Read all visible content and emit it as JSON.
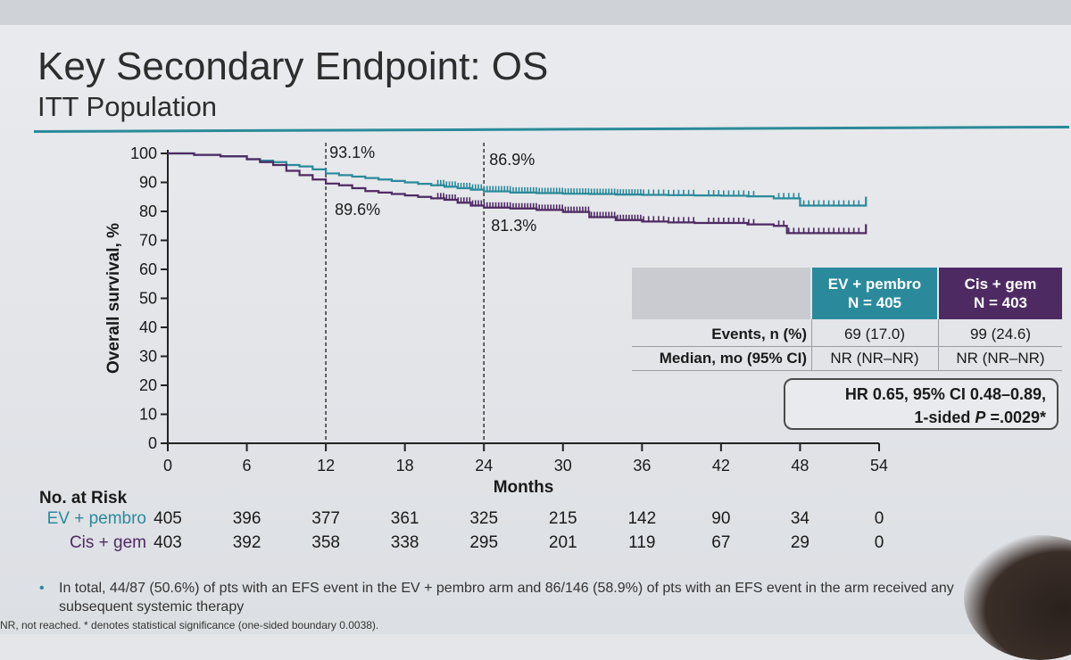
{
  "header": {
    "title": "Key Secondary Endpoint: OS",
    "subtitle": "ITT Population"
  },
  "colors": {
    "ev_pembro": "#2a8a9b",
    "cis_gem": "#4e2a63",
    "accent_rule": "#2b8a99"
  },
  "chart_data": {
    "type": "line",
    "subtype": "kaplan-meier",
    "xlabel": "Months",
    "ylabel": "Overall survival, %",
    "xlim": [
      0,
      54
    ],
    "ylim": [
      0,
      100
    ],
    "x_ticks": [
      0,
      6,
      12,
      18,
      24,
      30,
      36,
      42,
      48,
      54
    ],
    "y_ticks": [
      0,
      10,
      20,
      30,
      40,
      50,
      60,
      70,
      80,
      90,
      100
    ],
    "series": [
      {
        "name": "EV + pembro",
        "color": "#2a8a9b",
        "x": [
          0,
          2,
          4,
          6,
          7,
          8,
          9,
          10,
          11,
          12,
          13,
          14,
          15,
          16,
          17,
          18,
          19,
          20,
          21,
          22,
          23,
          24,
          26,
          28,
          30,
          32,
          34,
          36,
          38,
          40,
          42,
          44,
          46,
          47,
          48,
          50,
          52,
          53
        ],
        "y": [
          100,
          99.5,
          99,
          98,
          97.5,
          97,
          96,
          95.5,
          94.5,
          93.1,
          92.5,
          92,
          91.5,
          91,
          90.5,
          90,
          89.5,
          89,
          88.5,
          88,
          87.5,
          86.9,
          86.5,
          86.3,
          86.1,
          86,
          85.8,
          85.7,
          85.6,
          85.5,
          85.4,
          85.2,
          84.5,
          84.5,
          82,
          82,
          82,
          82
        ]
      },
      {
        "name": "Cis + gem",
        "color": "#4e2a63",
        "x": [
          0,
          2,
          4,
          6,
          7,
          8,
          9,
          10,
          11,
          12,
          13,
          14,
          15,
          16,
          17,
          18,
          19,
          20,
          21,
          22,
          23,
          24,
          26,
          28,
          30,
          32,
          34,
          36,
          38,
          40,
          42,
          44,
          46,
          47,
          48,
          50,
          52,
          53
        ],
        "y": [
          100,
          99.5,
          99,
          98,
          97,
          96,
          94,
          92.5,
          91,
          89.6,
          89,
          88,
          87,
          86.5,
          86,
          85.5,
          85,
          84.5,
          84,
          83,
          82,
          81.3,
          81,
          80.5,
          79.8,
          78,
          77,
          76.5,
          76.2,
          76,
          76,
          75.5,
          75,
          72.5,
          72.5,
          72.5,
          72.5,
          72.5
        ]
      }
    ],
    "annotations": [
      {
        "x": 12,
        "text": "93.1%",
        "series": "EV + pembro"
      },
      {
        "x": 12,
        "text": "89.6%",
        "series": "Cis + gem"
      },
      {
        "x": 24,
        "text": "86.9%",
        "series": "EV + pembro"
      },
      {
        "x": 24,
        "text": "81.3%",
        "series": "Cis + gem"
      }
    ]
  },
  "summary_table": {
    "headers": [
      {
        "line1": "EV + pembro",
        "line2": "N = 405"
      },
      {
        "line1": "Cis + gem",
        "line2": "N = 403"
      }
    ],
    "rows": [
      {
        "label": "Events, n (%)",
        "ev": "69 (17.0)",
        "cg": "99 (24.6)"
      },
      {
        "label": "Median, mo (95% CI)",
        "ev": "NR (NR–NR)",
        "cg": "NR (NR–NR)"
      }
    ],
    "hr_line1": "HR 0.65, 95% CI 0.48–0.89,",
    "hr_line2_prefix": "1-sided ",
    "hr_line2_p": "P",
    "hr_line2_suffix": " =.0029*"
  },
  "at_risk": {
    "title": "No. at Risk",
    "rows": [
      {
        "arm": "EV + pembro",
        "values": [
          "405",
          "396",
          "377",
          "361",
          "325",
          "215",
          "142",
          "90",
          "34",
          "0"
        ]
      },
      {
        "arm": "Cis + gem",
        "values": [
          "403",
          "392",
          "358",
          "338",
          "295",
          "201",
          "119",
          "67",
          "29",
          "0"
        ]
      }
    ]
  },
  "bullet": "In total, 44/87 (50.6%) of pts with an EFS event in the EV + pembro arm and 86/146 (58.9%) of pts with an EFS event in the arm received any subsequent systemic therapy",
  "footnote": "NR, not reached. * denotes statistical significance (one-sided boundary 0.0038)."
}
